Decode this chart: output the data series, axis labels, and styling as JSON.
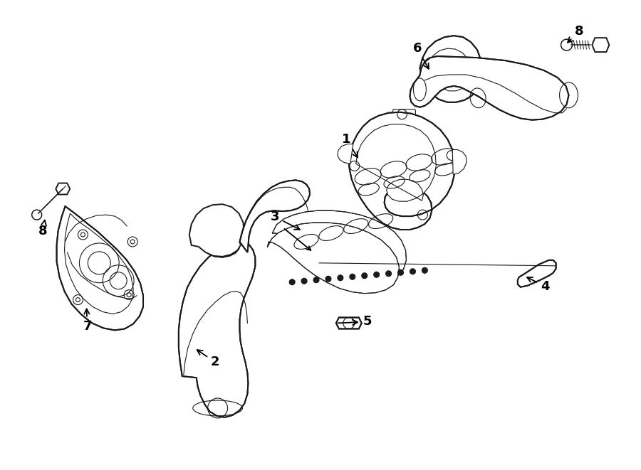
{
  "bg_color": "#ffffff",
  "line_color": "#1a1a1a",
  "fig_width": 9.0,
  "fig_height": 6.61,
  "dpi": 100,
  "label_fontsize": 13,
  "label_fontsize_sm": 11,
  "lw_main": 1.4,
  "lw_thin": 0.8,
  "lw_med": 1.1
}
